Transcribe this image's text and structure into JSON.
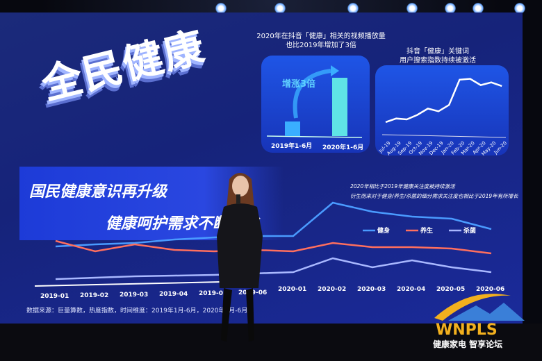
{
  "slide": {
    "title": "全民健康",
    "banner_line1": "国民健康意识再升级",
    "banner_line2": "健康呵护需求不断变化",
    "bar_panel": {
      "caption_line1": "2020年在抖音「健康」相关的视频播放量",
      "caption_line2": "也比2019年增加了3倍",
      "annotation": "增涨3倍"
    },
    "trend_panel": {
      "caption_line1": "抖音「健康」关键词",
      "caption_line2": "用户搜索指数持续被激活"
    },
    "main_note_line1": "2020年相比于2019年健康关注度被持续激活",
    "main_note_line2": "衍生而来对于健身/养生/杀菌的细分需求关注度也相比于2019年有所增长",
    "source": "数据来源：巨量算数，热度指数，时间维度：2019年1月-6月，2020年1月-6月"
  },
  "colors": {
    "slide_bg": "#1a2a8a",
    "jianshen": "#4a9bff",
    "yangsheng": "#ff6f5e",
    "shajun": "#a9b8ff",
    "bar_2019": "#3aaeff",
    "bar_2020": "#5fe3e6"
  },
  "logo": {
    "text": "WNPLS",
    "subtitle": "健康家电 智享论坛"
  },
  "chart_data": [
    {
      "type": "bar",
      "categories": [
        "2019年1-6月",
        "2020年1-6月"
      ],
      "values": [
        1,
        4
      ],
      "title": "2020年在抖音「健康」相关的视频播放量 也比2019年增加了3倍"
    },
    {
      "type": "line",
      "title": "抖音「健康」关键词 用户搜索指数持续被激活",
      "categories": [
        "Jul-19",
        "Aug-19",
        "Sep-19",
        "Oct-19",
        "Nov-19",
        "Dec-19",
        "Jan-20",
        "Feb-20",
        "Mar-20",
        "Apr-20",
        "May-20",
        "Jun-20"
      ],
      "values": [
        17,
        21,
        20,
        25,
        32,
        29,
        36,
        64,
        65,
        58,
        61,
        57
      ]
    },
    {
      "type": "line",
      "categories": [
        "2019-01",
        "2019-02",
        "2019-03",
        "2019-04",
        "2019-05",
        "2019-06",
        "2020-01",
        "2020-02",
        "2020-03",
        "2020-04",
        "2020-05",
        "2020-06"
      ],
      "series": [
        {
          "name": "健身",
          "color": "#4a9bff",
          "values": [
            55,
            58,
            60,
            65,
            68,
            70,
            70,
            118,
            105,
            98,
            95,
            80
          ]
        },
        {
          "name": "养生",
          "color": "#ff6f5e",
          "values": [
            63,
            48,
            58,
            50,
            48,
            50,
            48,
            60,
            54,
            54,
            52,
            45
          ]
        },
        {
          "name": "杀菌",
          "color": "#a9b8ff",
          "values": [
            8,
            10,
            12,
            13,
            14,
            16,
            18,
            38,
            25,
            35,
            25,
            18
          ]
        }
      ],
      "legend": "top-right"
    }
  ]
}
